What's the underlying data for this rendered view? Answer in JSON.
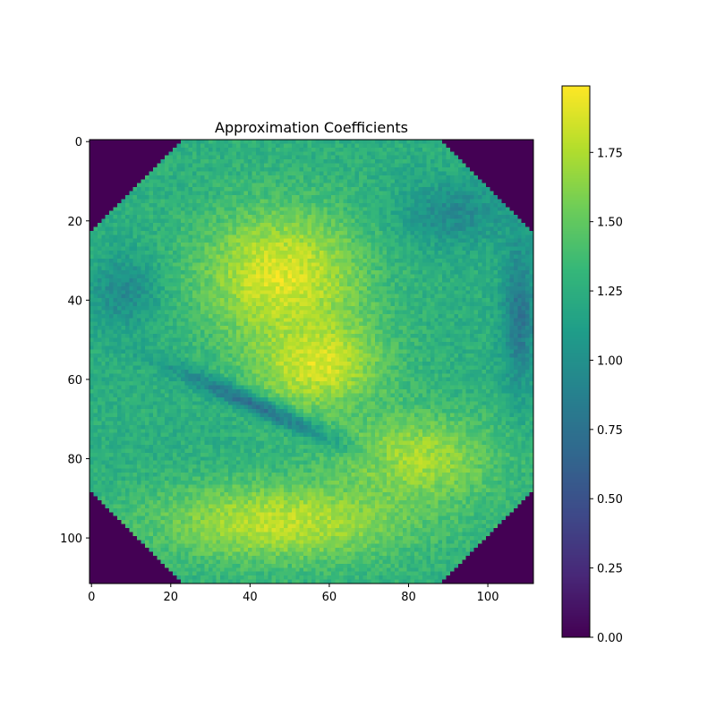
{
  "chart_data": {
    "type": "heatmap",
    "title": "Approximation Coefficients",
    "xlabel": "",
    "ylabel": "",
    "shape": [
      112,
      112
    ],
    "xlim": [
      -0.5,
      111.5
    ],
    "ylim": [
      111.5,
      -0.5
    ],
    "x_ticks": [
      0,
      20,
      40,
      60,
      80,
      100
    ],
    "y_ticks": [
      0,
      20,
      40,
      60,
      80,
      100
    ],
    "x_tick_labels": [
      "0",
      "20",
      "40",
      "60",
      "80",
      "100"
    ],
    "y_tick_labels": [
      "0",
      "20",
      "40",
      "60",
      "80",
      "100"
    ],
    "colormap": "viridis",
    "value_range": [
      0.0,
      1.99
    ],
    "colorbar": {
      "ticks": [
        0.0,
        0.25,
        0.5,
        0.75,
        1.0,
        1.25,
        1.5,
        1.75
      ],
      "tick_labels": [
        "0.00",
        "0.25",
        "0.50",
        "0.75",
        "1.00",
        "1.25",
        "1.50",
        "1.75"
      ]
    },
    "corner_value": 0.0,
    "regions": [
      {
        "name": "upper-left lobe",
        "center": [
          48,
          34
        ],
        "radii": [
          24,
          20
        ],
        "value": 1.9
      },
      {
        "name": "center lobe",
        "center": [
          57,
          56
        ],
        "radii": [
          19,
          14
        ],
        "value": 1.88
      },
      {
        "name": "lower band",
        "center": [
          48,
          96
        ],
        "radii": [
          38,
          12
        ],
        "value": 1.8
      },
      {
        "name": "lower-right lobe",
        "center": [
          82,
          80
        ],
        "radii": [
          24,
          14
        ],
        "value": 1.72
      },
      {
        "name": "left dark region",
        "center": [
          8,
          38
        ],
        "radii": [
          10,
          11
        ],
        "value": 0.95
      },
      {
        "name": "upper-right dark band",
        "center": [
          92,
          18
        ],
        "radii": [
          16,
          10
        ],
        "value": 0.95
      },
      {
        "name": "right dark edge",
        "center": [
          108,
          44
        ],
        "radii": [
          5,
          22
        ],
        "value": 0.78
      },
      {
        "name": "diagonal fold",
        "center": [
          40,
          66
        ],
        "radii": [
          26,
          3
        ],
        "value": 0.75
      }
    ]
  }
}
